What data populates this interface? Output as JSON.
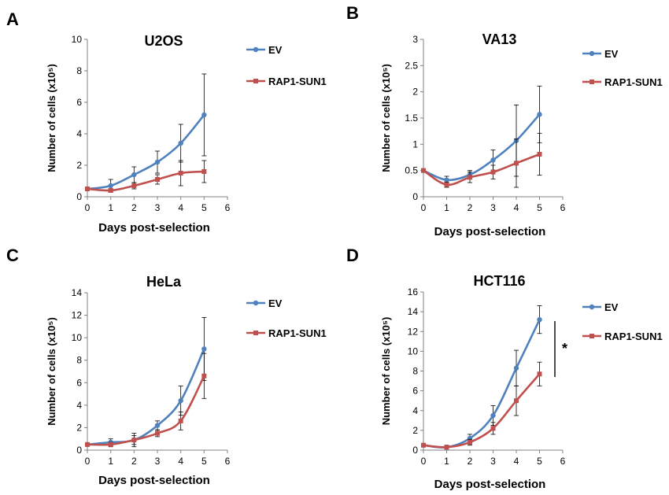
{
  "colors": {
    "EV": "#4F81BD",
    "RAP1-SUN1": "#C0504D",
    "axis": "#808080",
    "error": "#000000"
  },
  "chart_data": [
    {
      "panel": "A",
      "type": "line",
      "title": "U2OS",
      "xlabel": "Days post-selection",
      "ylabel": "Number of cells (x10⁵)",
      "xlim": [
        0,
        6
      ],
      "ylim": [
        0,
        10
      ],
      "xticks": [
        0,
        1,
        2,
        3,
        4,
        5,
        6
      ],
      "yticks": [
        0,
        2,
        4,
        6,
        8,
        10
      ],
      "legend_position": "right",
      "series": [
        {
          "name": "EV",
          "color": "#4F81BD",
          "marker": "circle",
          "x": [
            0,
            1,
            2,
            3,
            4,
            5
          ],
          "y": [
            0.5,
            0.7,
            1.4,
            2.2,
            3.4,
            5.2
          ],
          "err": [
            0.1,
            0.4,
            0.5,
            0.7,
            1.2,
            2.6
          ]
        },
        {
          "name": "RAP1-SUN1",
          "color": "#C0504D",
          "marker": "square",
          "x": [
            0,
            1,
            2,
            3,
            4,
            5
          ],
          "y": [
            0.5,
            0.4,
            0.7,
            1.1,
            1.5,
            1.6
          ],
          "err": [
            0.1,
            0.1,
            0.2,
            0.3,
            0.8,
            0.7
          ]
        }
      ]
    },
    {
      "panel": "B",
      "type": "line",
      "title": "VA13",
      "xlabel": "Days post-selection",
      "ylabel": "Number of cells (x10⁵)",
      "xlim": [
        0,
        6
      ],
      "ylim": [
        0,
        3
      ],
      "xticks": [
        0,
        1,
        2,
        3,
        4,
        5,
        6
      ],
      "yticks": [
        0,
        0.5,
        1,
        1.5,
        2,
        2.5,
        3
      ],
      "legend_position": "right",
      "series": [
        {
          "name": "EV",
          "color": "#4F81BD",
          "marker": "circle",
          "x": [
            0,
            1,
            2,
            3,
            4,
            5
          ],
          "y": [
            0.5,
            0.32,
            0.42,
            0.7,
            1.07,
            1.57
          ],
          "err": [
            0.02,
            0.07,
            0.08,
            0.19,
            0.68,
            0.54
          ]
        },
        {
          "name": "RAP1-SUN1",
          "color": "#C0504D",
          "marker": "square",
          "x": [
            0,
            1,
            2,
            3,
            4,
            5
          ],
          "y": [
            0.5,
            0.23,
            0.37,
            0.47,
            0.64,
            0.81
          ],
          "err": [
            0.02,
            0.05,
            0.1,
            0.13,
            0.46,
            0.4
          ]
        }
      ]
    },
    {
      "panel": "C",
      "type": "line",
      "title": "HeLa",
      "xlabel": "Days post-selection",
      "ylabel": "Number of cells (x10⁵)",
      "xlim": [
        0,
        6
      ],
      "ylim": [
        0,
        14
      ],
      "xticks": [
        0,
        1,
        2,
        3,
        4,
        5,
        6
      ],
      "yticks": [
        0,
        2,
        4,
        6,
        8,
        10,
        12,
        14
      ],
      "legend_position": "right",
      "series": [
        {
          "name": "EV",
          "color": "#4F81BD",
          "marker": "circle",
          "x": [
            0,
            1,
            2,
            3,
            4,
            5
          ],
          "y": [
            0.5,
            0.7,
            0.9,
            2.2,
            4.4,
            9.0
          ],
          "err": [
            0.1,
            0.3,
            0.6,
            0.4,
            1.3,
            2.8
          ]
        },
        {
          "name": "RAP1-SUN1",
          "color": "#C0504D",
          "marker": "square",
          "x": [
            0,
            1,
            2,
            3,
            4,
            5
          ],
          "y": [
            0.5,
            0.5,
            0.9,
            1.5,
            2.6,
            6.6
          ],
          "err": [
            0.1,
            0.2,
            0.4,
            0.3,
            0.8,
            2.0
          ]
        }
      ]
    },
    {
      "panel": "D",
      "type": "line",
      "title": "HCT116",
      "xlabel": "Days post-selection",
      "ylabel": "Number of cells (x10⁵)",
      "xlim": [
        0,
        6
      ],
      "ylim": [
        0,
        16
      ],
      "xticks": [
        0,
        1,
        2,
        3,
        4,
        5,
        6
      ],
      "yticks": [
        0,
        2,
        4,
        6,
        8,
        10,
        12,
        14,
        16
      ],
      "legend_position": "right",
      "significance": "*",
      "series": [
        {
          "name": "EV",
          "color": "#4F81BD",
          "marker": "circle",
          "x": [
            0,
            1,
            2,
            3,
            4,
            5
          ],
          "y": [
            0.5,
            0.3,
            1.2,
            3.5,
            8.3,
            13.2
          ],
          "err": [
            0.1,
            0.2,
            0.4,
            1.0,
            1.8,
            1.4
          ]
        },
        {
          "name": "RAP1-SUN1",
          "color": "#C0504D",
          "marker": "square",
          "x": [
            0,
            1,
            2,
            3,
            4,
            5
          ],
          "y": [
            0.5,
            0.3,
            0.8,
            2.2,
            5.0,
            7.7
          ],
          "err": [
            0.1,
            0.1,
            0.3,
            0.6,
            1.5,
            1.2
          ]
        }
      ]
    }
  ]
}
